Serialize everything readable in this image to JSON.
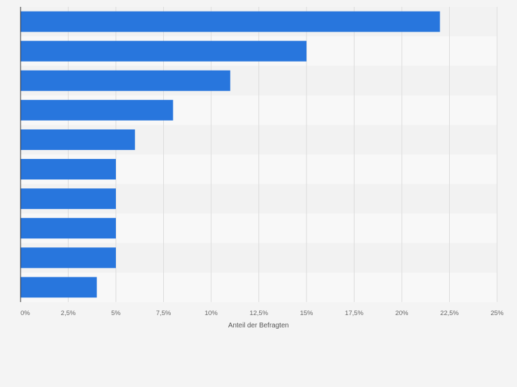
{
  "chart_data": {
    "type": "bar",
    "orientation": "horizontal",
    "title": "",
    "xlabel": "Anteil der Befragten",
    "ylabel": "",
    "categories": [
      "",
      "",
      "",
      "",
      "",
      "",
      "",
      "",
      "",
      ""
    ],
    "values": [
      22,
      15,
      11,
      8,
      6,
      5,
      5,
      5,
      5,
      4
    ],
    "xlim": [
      0,
      25
    ],
    "x_ticks": [
      0,
      2.5,
      5,
      7.5,
      10,
      12.5,
      15,
      17.5,
      20,
      22.5,
      25
    ],
    "x_tick_labels": [
      "0%",
      "2,5%",
      "5%",
      "7,5%",
      "10%",
      "12,5%",
      "15%",
      "17,5%",
      "20%",
      "22,5%",
      "25%"
    ],
    "grid": true,
    "legend": "none",
    "colors": {
      "bar": "#2876dd",
      "row_even": "#f8f8f8",
      "row_odd": "#f2f2f2",
      "grid": "#dcdcdc",
      "axis": "#333333",
      "tick_text": "#666666",
      "page_background": "#f4f4f4"
    }
  }
}
